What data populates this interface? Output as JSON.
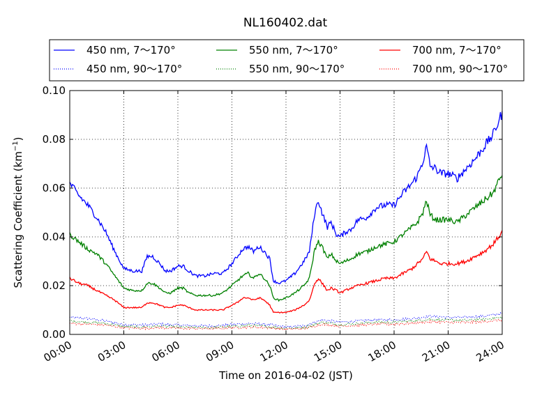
{
  "chart_data": {
    "type": "line",
    "title": "NL160402.dat",
    "xlabel": "Time on 2016-04-02 (JST)",
    "ylabel": "Scattering Coefficient (km",
    "ylabel_sup": "−1",
    "ylabel_close": ")",
    "xlim": [
      0,
      24
    ],
    "ylim": [
      0,
      0.1
    ],
    "grid": true,
    "legend_position": "top",
    "x_ticks": [
      0,
      3,
      6,
      9,
      12,
      15,
      18,
      21,
      24
    ],
    "x_tick_labels": [
      "00:00",
      "03:00",
      "06:00",
      "09:00",
      "12:00",
      "15:00",
      "18:00",
      "21:00",
      "24:00"
    ],
    "y_ticks": [
      0,
      0.02,
      0.04,
      0.06,
      0.08,
      0.1
    ],
    "y_tick_labels": [
      "0.00",
      "0.02",
      "0.04",
      "0.06",
      "0.08",
      "0.10"
    ],
    "series": [
      {
        "name": "450 nm, 7～170°",
        "color": "#0000ff",
        "style": "solid",
        "x": [
          0,
          0.5,
          1,
          1.5,
          2,
          2.5,
          3,
          3.5,
          4,
          4.3,
          4.6,
          5,
          5.3,
          5.6,
          6,
          6.3,
          6.6,
          7,
          7.5,
          8,
          8.5,
          9,
          9.3,
          9.6,
          9.9,
          10.2,
          10.5,
          10.8,
          11.1,
          11.3,
          11.6,
          12,
          12.5,
          13,
          13.3,
          13.6,
          13.8,
          14,
          14.3,
          14.5,
          14.8,
          15,
          15.3,
          15.6,
          16,
          16.5,
          17,
          17.5,
          18,
          18.5,
          19,
          19.3,
          19.6,
          19.8,
          20,
          20.3,
          20.6,
          21,
          21.5,
          22,
          22.5,
          23,
          23.5,
          24
        ],
        "y": [
          0.062,
          0.057,
          0.053,
          0.048,
          0.042,
          0.034,
          0.027,
          0.026,
          0.026,
          0.032,
          0.032,
          0.029,
          0.026,
          0.026,
          0.028,
          0.028,
          0.026,
          0.024,
          0.024,
          0.025,
          0.025,
          0.029,
          0.032,
          0.035,
          0.036,
          0.034,
          0.036,
          0.034,
          0.031,
          0.022,
          0.021,
          0.022,
          0.025,
          0.03,
          0.034,
          0.05,
          0.055,
          0.05,
          0.044,
          0.046,
          0.041,
          0.04,
          0.042,
          0.043,
          0.047,
          0.048,
          0.052,
          0.053,
          0.053,
          0.058,
          0.062,
          0.065,
          0.071,
          0.077,
          0.069,
          0.068,
          0.066,
          0.066,
          0.064,
          0.068,
          0.072,
          0.077,
          0.082,
          0.091
        ]
      },
      {
        "name": "550 nm, 7～170°",
        "color": "#008000",
        "style": "solid",
        "x": [
          0,
          0.5,
          1,
          1.5,
          2,
          2.5,
          3,
          3.5,
          4,
          4.3,
          4.6,
          5,
          5.3,
          5.6,
          6,
          6.3,
          6.6,
          7,
          7.5,
          8,
          8.5,
          9,
          9.3,
          9.6,
          9.9,
          10.2,
          10.5,
          10.8,
          11.1,
          11.3,
          11.6,
          12,
          12.5,
          13,
          13.3,
          13.6,
          13.8,
          14,
          14.3,
          14.5,
          14.8,
          15,
          15.3,
          15.6,
          16,
          16.5,
          17,
          17.5,
          18,
          18.5,
          19,
          19.3,
          19.6,
          19.8,
          20,
          20.3,
          20.6,
          21,
          21.5,
          22,
          22.5,
          23,
          23.5,
          24
        ],
        "y": [
          0.041,
          0.038,
          0.035,
          0.033,
          0.029,
          0.024,
          0.019,
          0.018,
          0.018,
          0.021,
          0.021,
          0.019,
          0.017,
          0.017,
          0.019,
          0.019,
          0.017,
          0.016,
          0.016,
          0.016,
          0.017,
          0.02,
          0.022,
          0.024,
          0.025,
          0.023,
          0.025,
          0.023,
          0.02,
          0.015,
          0.014,
          0.015,
          0.017,
          0.02,
          0.023,
          0.035,
          0.038,
          0.036,
          0.031,
          0.033,
          0.03,
          0.029,
          0.03,
          0.031,
          0.033,
          0.034,
          0.036,
          0.037,
          0.038,
          0.041,
          0.044,
          0.046,
          0.05,
          0.055,
          0.049,
          0.047,
          0.047,
          0.047,
          0.046,
          0.049,
          0.052,
          0.055,
          0.058,
          0.066
        ]
      },
      {
        "name": "700 nm, 7～170°",
        "color": "#ff0000",
        "style": "solid",
        "x": [
          0,
          0.5,
          1,
          1.5,
          2,
          2.5,
          3,
          3.5,
          4,
          4.3,
          4.6,
          5,
          5.3,
          5.6,
          6,
          6.3,
          6.6,
          7,
          7.5,
          8,
          8.5,
          9,
          9.3,
          9.6,
          9.9,
          10.2,
          10.5,
          10.8,
          11.1,
          11.3,
          11.6,
          12,
          12.5,
          13,
          13.3,
          13.6,
          13.8,
          14,
          14.3,
          14.5,
          14.8,
          15,
          15.3,
          15.6,
          16,
          16.5,
          17,
          17.5,
          18,
          18.5,
          19,
          19.3,
          19.6,
          19.8,
          20,
          20.3,
          20.6,
          21,
          21.5,
          22,
          22.5,
          23,
          23.5,
          24
        ],
        "y": [
          0.023,
          0.021,
          0.02,
          0.018,
          0.016,
          0.014,
          0.011,
          0.011,
          0.011,
          0.013,
          0.013,
          0.012,
          0.011,
          0.011,
          0.012,
          0.012,
          0.011,
          0.01,
          0.01,
          0.01,
          0.01,
          0.012,
          0.013,
          0.015,
          0.015,
          0.014,
          0.015,
          0.014,
          0.012,
          0.009,
          0.009,
          0.009,
          0.01,
          0.012,
          0.014,
          0.021,
          0.023,
          0.021,
          0.018,
          0.019,
          0.018,
          0.017,
          0.018,
          0.019,
          0.02,
          0.021,
          0.022,
          0.023,
          0.023,
          0.025,
          0.027,
          0.029,
          0.031,
          0.034,
          0.031,
          0.03,
          0.029,
          0.029,
          0.029,
          0.03,
          0.032,
          0.034,
          0.037,
          0.042
        ]
      },
      {
        "name": "450 nm, 90～170°",
        "color": "#0000ff",
        "style": "dotted",
        "x": [
          0,
          1,
          2,
          3,
          4,
          5,
          6,
          7,
          8,
          9,
          10,
          11,
          12,
          13,
          14,
          15,
          16,
          17,
          18,
          19,
          20,
          21,
          22,
          23,
          24
        ],
        "y": [
          0.007,
          0.0065,
          0.0055,
          0.004,
          0.0038,
          0.0042,
          0.0038,
          0.0035,
          0.0035,
          0.004,
          0.0045,
          0.004,
          0.003,
          0.0035,
          0.006,
          0.005,
          0.0055,
          0.006,
          0.006,
          0.0065,
          0.0075,
          0.007,
          0.007,
          0.0075,
          0.0085
        ]
      },
      {
        "name": "550 nm, 90～170°",
        "color": "#008000",
        "style": "dotted",
        "x": [
          0,
          1,
          2,
          3,
          4,
          5,
          6,
          7,
          8,
          9,
          10,
          11,
          12,
          13,
          14,
          15,
          16,
          17,
          18,
          19,
          20,
          21,
          22,
          23,
          24
        ],
        "y": [
          0.0055,
          0.005,
          0.0045,
          0.0032,
          0.003,
          0.0034,
          0.003,
          0.0028,
          0.0028,
          0.0032,
          0.0037,
          0.0032,
          0.0025,
          0.0028,
          0.005,
          0.004,
          0.0045,
          0.005,
          0.005,
          0.0055,
          0.0062,
          0.0058,
          0.0058,
          0.0062,
          0.007
        ]
      },
      {
        "name": "700 nm, 90～170°",
        "color": "#ff0000",
        "style": "dotted",
        "x": [
          0,
          1,
          2,
          3,
          4,
          5,
          6,
          7,
          8,
          9,
          10,
          11,
          12,
          13,
          14,
          15,
          16,
          17,
          18,
          19,
          20,
          21,
          22,
          23,
          24
        ],
        "y": [
          0.0045,
          0.0042,
          0.0038,
          0.0027,
          0.0025,
          0.0028,
          0.0025,
          0.0024,
          0.0024,
          0.0027,
          0.003,
          0.0027,
          0.0021,
          0.0024,
          0.0042,
          0.0034,
          0.0038,
          0.0042,
          0.0042,
          0.0046,
          0.0052,
          0.0049,
          0.0049,
          0.0052,
          0.006
        ]
      }
    ]
  }
}
